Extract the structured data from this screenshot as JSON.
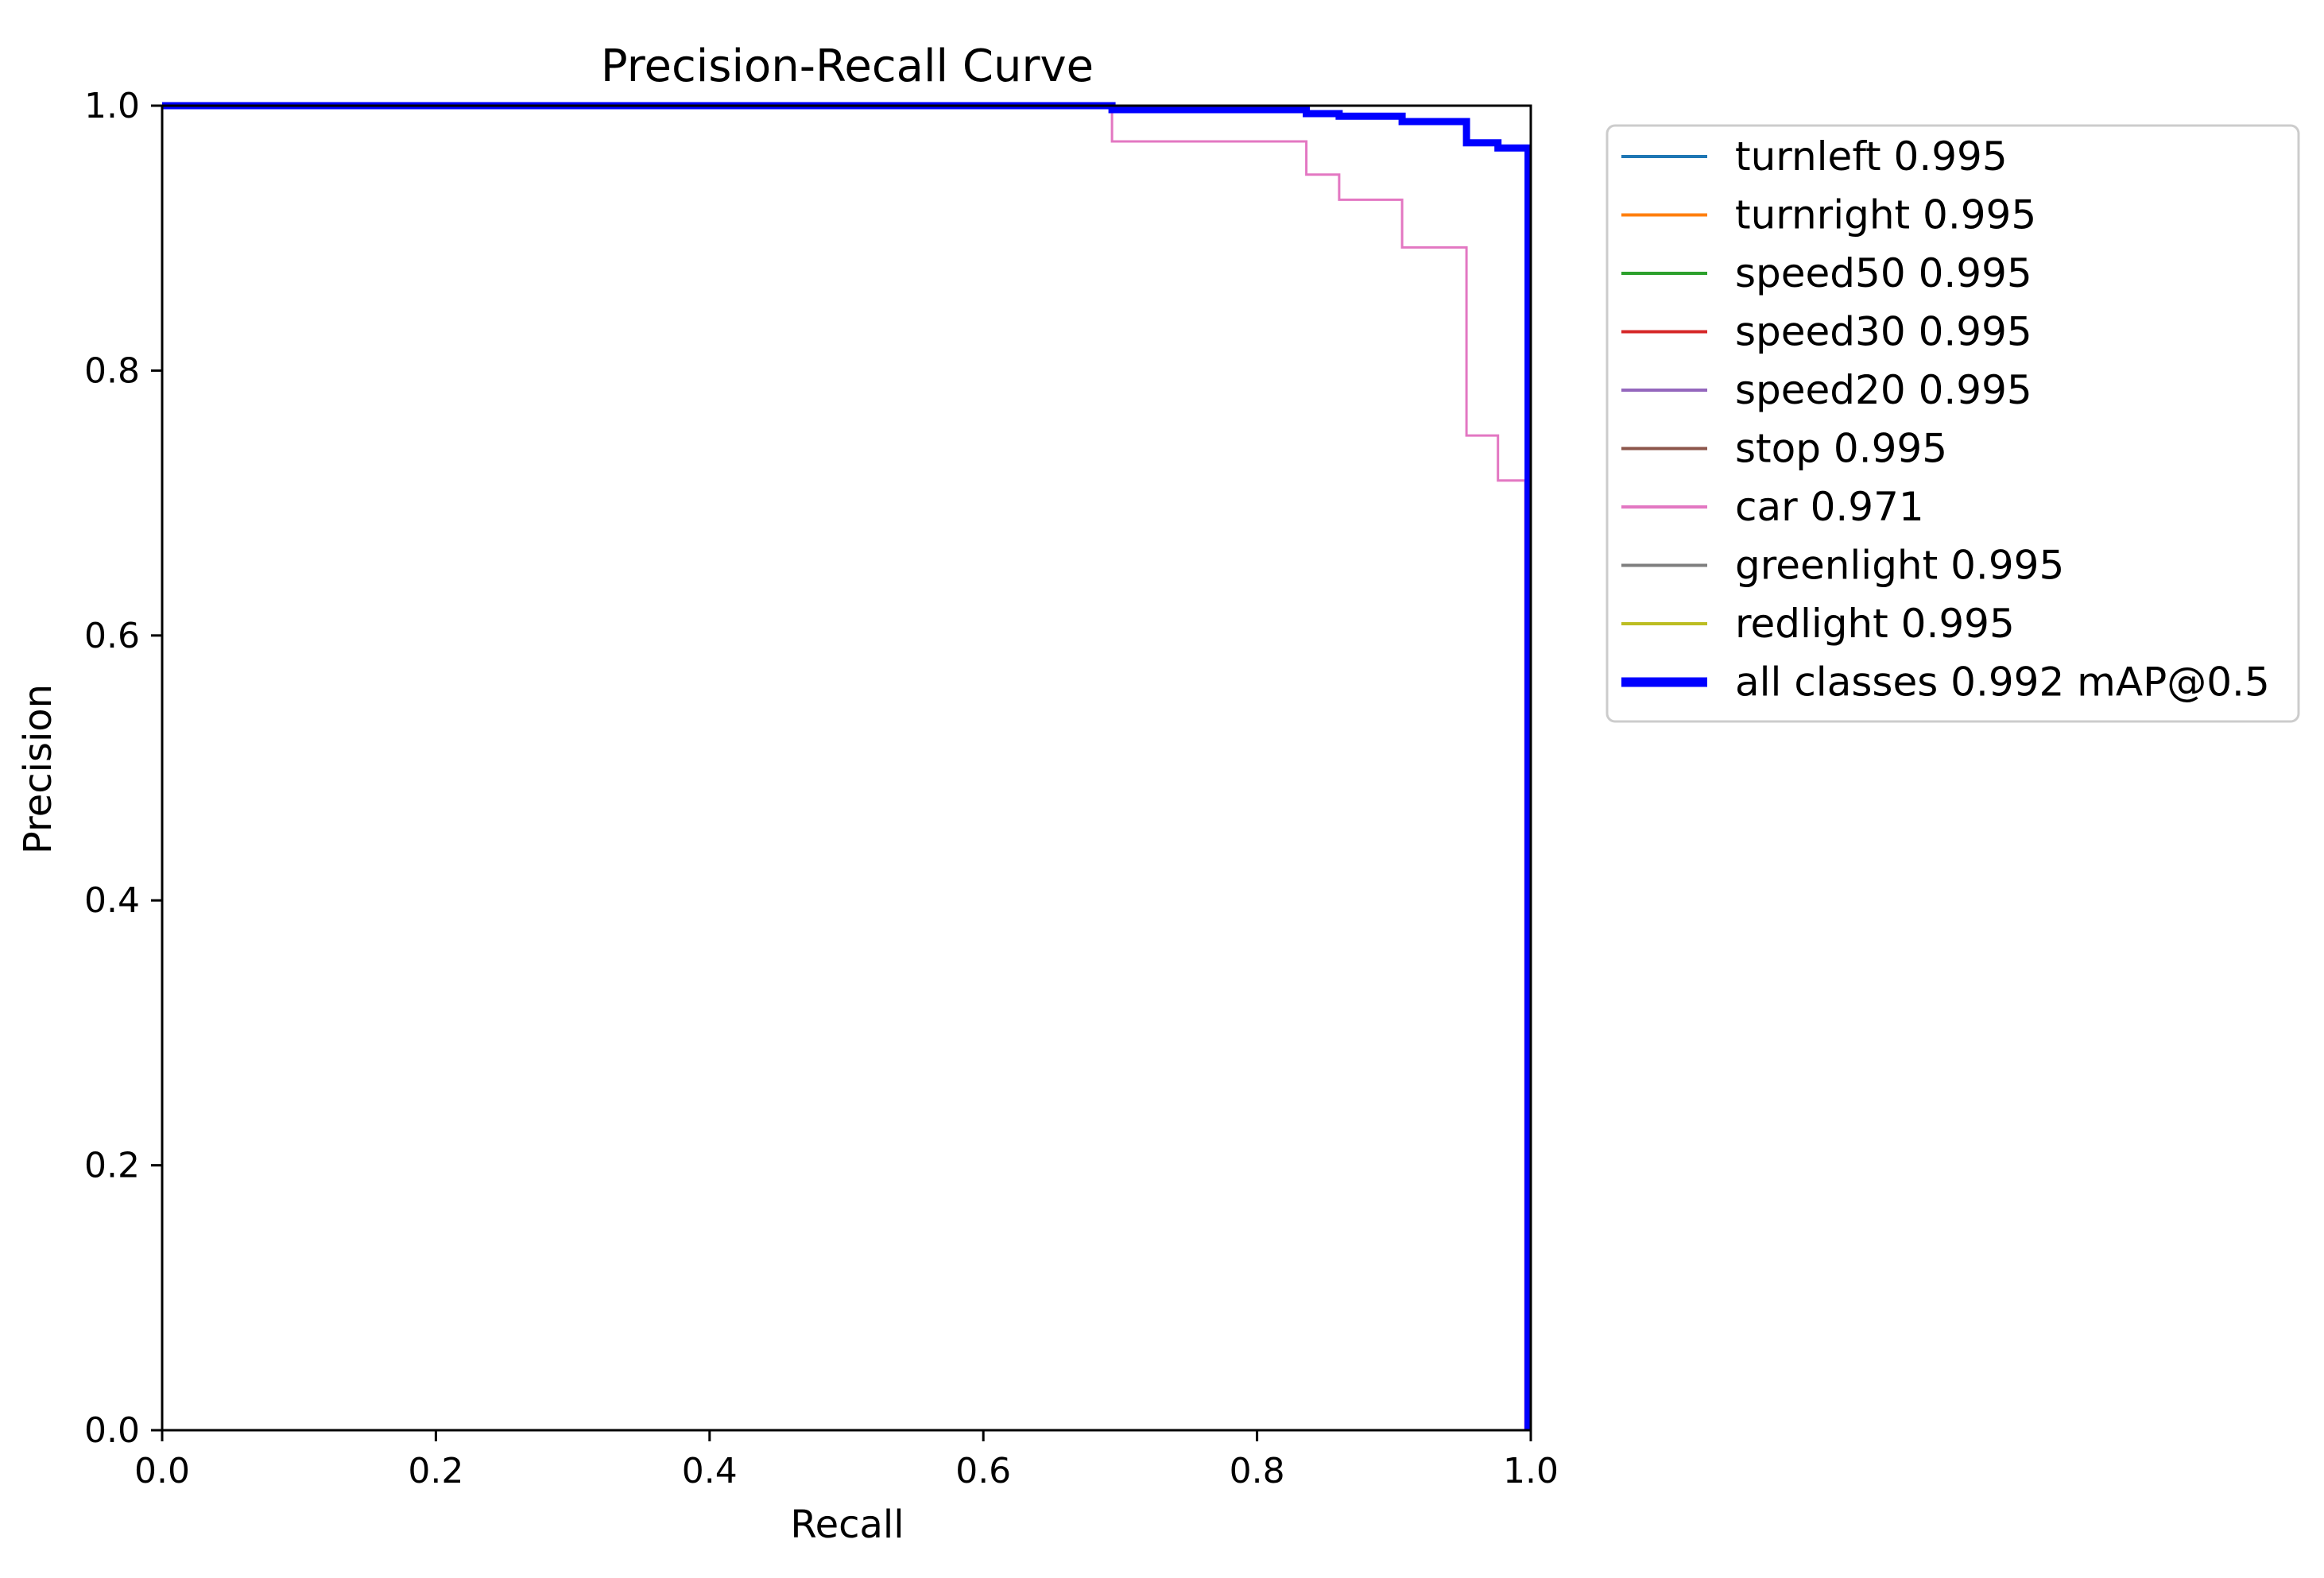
{
  "chart_data": {
    "type": "line",
    "title": "Precision-Recall Curve",
    "xlabel": "Recall",
    "ylabel": "Precision",
    "xlim": [
      0.0,
      1.0
    ],
    "ylim": [
      0.0,
      1.0
    ],
    "xticks": [
      "0.0",
      "0.2",
      "0.4",
      "0.6",
      "0.8",
      "1.0"
    ],
    "yticks": [
      "0.0",
      "0.2",
      "0.4",
      "0.6",
      "0.8",
      "1.0"
    ],
    "grid": false,
    "legend_position": "outside-right",
    "series": [
      {
        "name": "turnleft 0.995",
        "color": "#1f77b4",
        "width": "thin",
        "x": [
          0.0,
          1.0,
          1.0
        ],
        "y": [
          1.0,
          1.0,
          0.0
        ]
      },
      {
        "name": "turnright 0.995",
        "color": "#ff7f0e",
        "width": "thin",
        "x": [
          0.0,
          1.0,
          1.0
        ],
        "y": [
          1.0,
          1.0,
          0.0
        ]
      },
      {
        "name": "speed50 0.995",
        "color": "#2ca02c",
        "width": "thin",
        "x": [
          0.0,
          1.0,
          1.0
        ],
        "y": [
          1.0,
          1.0,
          0.0
        ]
      },
      {
        "name": "speed30 0.995",
        "color": "#d62728",
        "width": "thin",
        "x": [
          0.0,
          1.0,
          1.0
        ],
        "y": [
          1.0,
          1.0,
          0.0
        ]
      },
      {
        "name": "speed20 0.995",
        "color": "#9467bd",
        "width": "thin",
        "x": [
          0.0,
          1.0,
          1.0
        ],
        "y": [
          1.0,
          1.0,
          0.0
        ]
      },
      {
        "name": "stop 0.995",
        "color": "#8c564b",
        "width": "thin",
        "x": [
          0.0,
          1.0,
          1.0
        ],
        "y": [
          1.0,
          1.0,
          0.0
        ]
      },
      {
        "name": "car 0.971",
        "color": "#e377c2",
        "width": "thin",
        "x": [
          0.0,
          0.694,
          0.694,
          0.836,
          0.836,
          0.86,
          0.86,
          0.906,
          0.906,
          0.953,
          0.953,
          0.976,
          0.976,
          0.996,
          0.996
        ],
        "y": [
          1.0,
          1.0,
          0.973,
          0.973,
          0.948,
          0.948,
          0.929,
          0.929,
          0.893,
          0.893,
          0.751,
          0.751,
          0.717,
          0.717,
          0.0
        ]
      },
      {
        "name": "greenlight 0.995",
        "color": "#7f7f7f",
        "width": "thin",
        "x": [
          0.0,
          1.0,
          1.0
        ],
        "y": [
          1.0,
          1.0,
          0.0
        ]
      },
      {
        "name": "redlight 0.995",
        "color": "#bcbd22",
        "width": "thin",
        "x": [
          0.0,
          1.0,
          1.0
        ],
        "y": [
          1.0,
          1.0,
          0.0
        ]
      },
      {
        "name": "all classes 0.992 mAP@0.5",
        "color": "#0000ff",
        "width": "thick",
        "x": [
          0.0,
          0.694,
          0.694,
          0.836,
          0.836,
          0.86,
          0.86,
          0.906,
          0.906,
          0.953,
          0.953,
          0.976,
          0.976,
          0.998,
          0.998
        ],
        "y": [
          1.0,
          1.0,
          0.997,
          0.997,
          0.994,
          0.994,
          0.992,
          0.992,
          0.988,
          0.988,
          0.972,
          0.972,
          0.968,
          0.968,
          0.0
        ]
      }
    ]
  }
}
